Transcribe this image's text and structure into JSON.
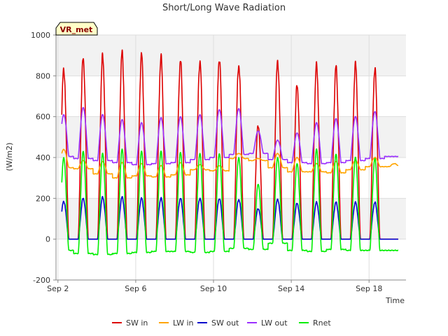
{
  "chart_data": {
    "type": "line",
    "title": "Short/Long Wave Radiation",
    "xlabel": "Time",
    "ylabel": "(W/m2)",
    "badge": "VR_met",
    "xlim": [
      1.9,
      19.9
    ],
    "ylim": [
      -200,
      1000
    ],
    "x_tick_labels": [
      "Sep 2",
      "Sep 6",
      "Sep 10",
      "Sep 14",
      "Sep 18"
    ],
    "x_tick_values": [
      2,
      6,
      10,
      14,
      18
    ],
    "y_ticks": [
      -200,
      0,
      200,
      400,
      600,
      800,
      1000
    ],
    "grid": true,
    "legend_position": "bottom-center",
    "days": [
      2.3,
      3.3,
      4.3,
      5.3,
      6.3,
      7.3,
      8.3,
      9.3,
      10.3,
      11.3,
      12.3,
      13.3,
      14.3,
      15.3,
      16.3,
      17.3,
      18.3,
      19.3
    ],
    "series": [
      {
        "name": "SW in",
        "color": "#dd0000",
        "daily_peak": [
          835,
          885,
          895,
          910,
          900,
          890,
          875,
          870,
          885,
          855,
          560,
          870,
          750,
          850,
          840,
          855,
          830,
          0
        ],
        "night": 0
      },
      {
        "name": "LW in",
        "color": "#ffa500",
        "daily_peak": [
          440,
          385,
          380,
          375,
          370,
          360,
          375,
          365,
          360,
          420,
          395,
          420,
          400,
          370,
          380,
          385,
          400,
          370
        ],
        "night": [
          350,
          345,
          320,
          300,
          310,
          305,
          315,
          340,
          335,
          395,
          385,
          350,
          330,
          330,
          325,
          340,
          355,
          355
        ]
      },
      {
        "name": "SW out",
        "color": "#0000cc",
        "daily_peak": [
          185,
          200,
          205,
          205,
          200,
          200,
          200,
          200,
          200,
          195,
          150,
          195,
          175,
          180,
          180,
          180,
          180,
          0
        ],
        "night": 0
      },
      {
        "name": "LW out",
        "color": "#9b30ff",
        "daily_peak": [
          610,
          645,
          610,
          585,
          570,
          595,
          600,
          610,
          635,
          640,
          530,
          485,
          520,
          570,
          590,
          600,
          625,
          0
        ],
        "night": [
          405,
          395,
          385,
          375,
          365,
          370,
          375,
          390,
          400,
          415,
          420,
          390,
          375,
          370,
          375,
          385,
          395,
          405
        ]
      },
      {
        "name": "Rnet",
        "color": "#00ee00",
        "daily_peak": [
          400,
          430,
          420,
          440,
          430,
          430,
          425,
          420,
          420,
          400,
          270,
          400,
          370,
          440,
          415,
          400,
          395,
          0
        ],
        "night": [
          -55,
          -70,
          -75,
          -70,
          -65,
          -60,
          -60,
          -65,
          -60,
          -45,
          -50,
          -20,
          -55,
          -60,
          -50,
          -55,
          -55,
          -55
        ]
      }
    ]
  }
}
